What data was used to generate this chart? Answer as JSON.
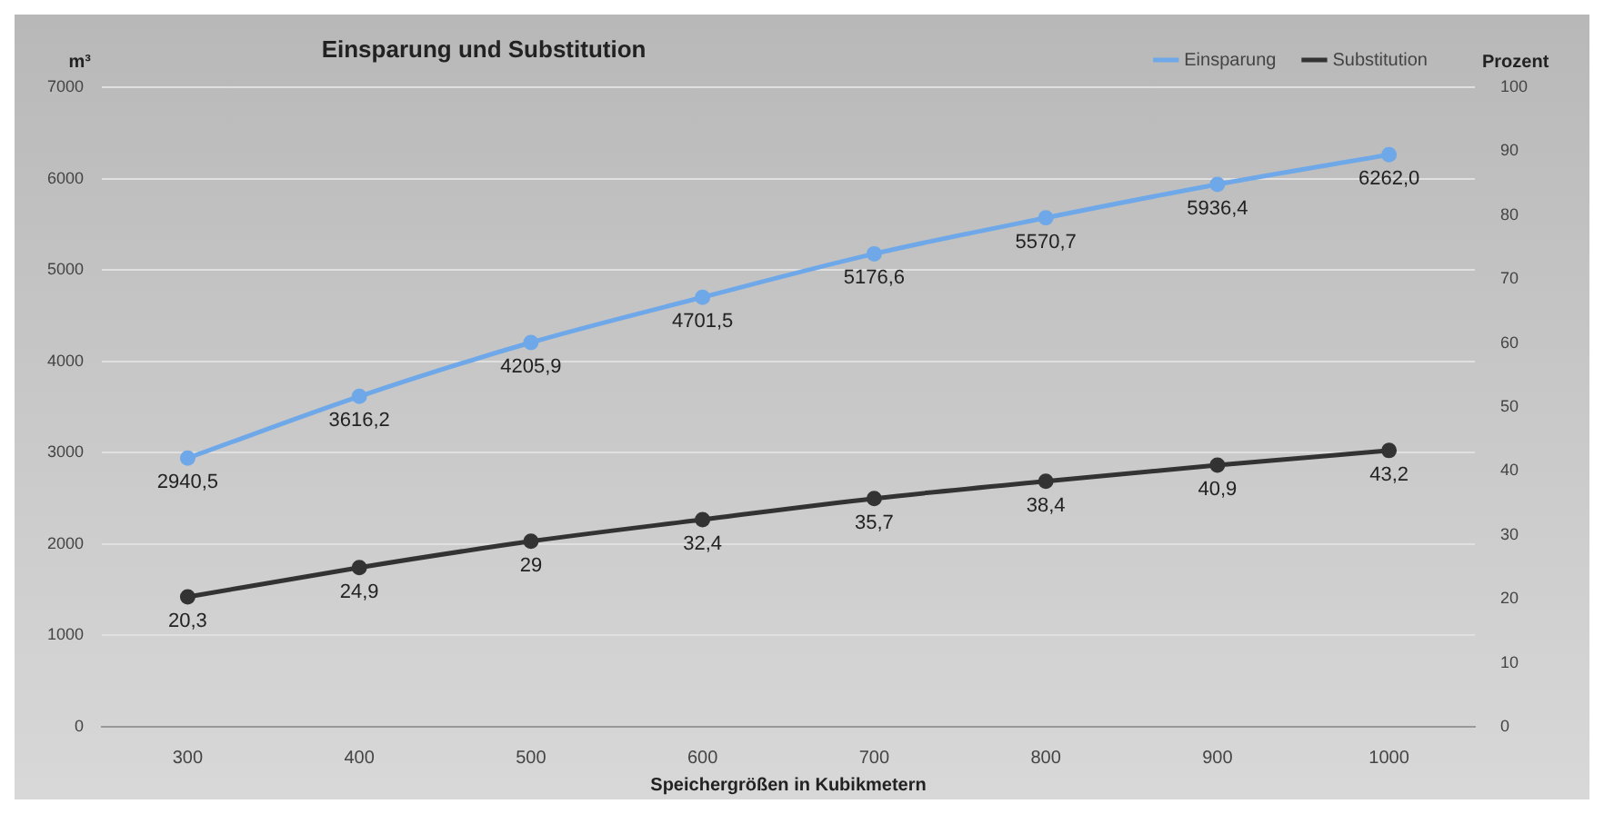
{
  "chart_data": {
    "type": "line",
    "title": "Einsparung und Substitution",
    "xlabel": "Speichergrößen in Kubikmetern",
    "ylabel": "m³",
    "y2label": "Prozent",
    "categories": [
      "300",
      "400",
      "500",
      "600",
      "700",
      "800",
      "900",
      "1000"
    ],
    "series": [
      {
        "name": "Einsparung",
        "color": "#6fa8e8",
        "values": [
          2940.5,
          3616.2,
          4205.9,
          4701.5,
          5176.6,
          5570.7,
          5936.4,
          6262.0
        ],
        "value_labels": [
          "2940,5",
          "3616,2",
          "4205,9",
          "4701,5",
          "5176,6",
          "5570,7",
          "5936,4",
          "6262,0"
        ]
      },
      {
        "name": "Substitution",
        "color": "#333333",
        "axis": "y2",
        "values": [
          20.3,
          24.9,
          29,
          32.4,
          35.7,
          38.4,
          40.9,
          43.2
        ],
        "value_labels": [
          "20,3",
          "24,9",
          "29",
          "32,4",
          "35,7",
          "38,4",
          "40,9",
          "43,2"
        ]
      }
    ],
    "ylim": [
      0,
      7000
    ],
    "yticks": [
      0,
      1000,
      2000,
      3000,
      4000,
      5000,
      6000,
      7000
    ],
    "y2lim": [
      0,
      100
    ],
    "y2ticks": [
      0,
      10,
      20,
      30,
      40,
      50,
      60,
      70,
      80,
      90,
      100
    ],
    "grid": "y",
    "legend": "top right",
    "marker": "circle",
    "line_style": "solid"
  }
}
